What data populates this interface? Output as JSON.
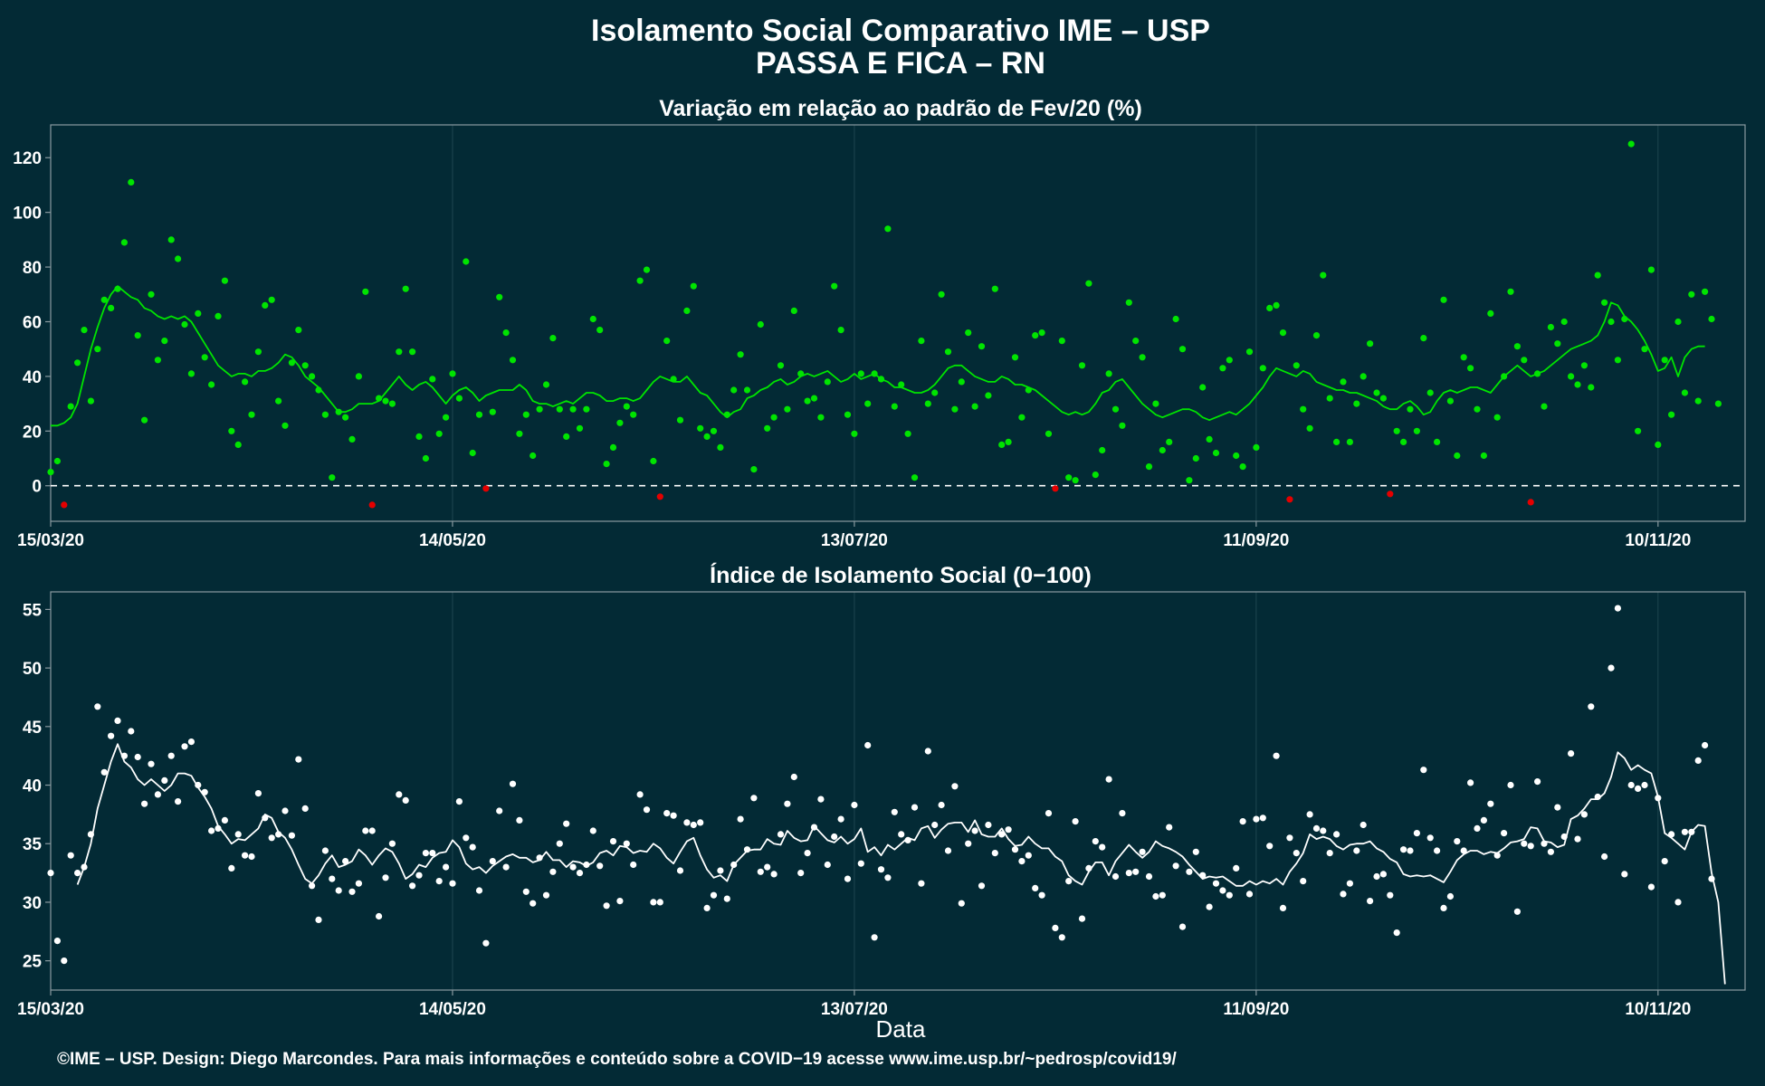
{
  "figure": {
    "title_line1": "Isolamento Social Comparativo IME – USP",
    "title_line2": "PASSA E FICA – RN",
    "xlabel": "Data",
    "footer": "©IME – USP. Design: Diego Marcondes. Para mais informações e conteúdo sobre a COVID−19 acesse www.ime.usp.br/~pedrosp/covid19/",
    "colors": {
      "background": "#032a35",
      "panel_border": "#8a9aa0",
      "grid": "#1e4650",
      "positive": "#00e400",
      "negative": "#e40000",
      "index": "#ffffff"
    }
  },
  "chart_data": [
    {
      "type": "scatter",
      "title": "Variação em relação ao padrão de Fev/20 (%)",
      "x_type": "date",
      "xlim": [
        "2020-03-15",
        "2020-11-23"
      ],
      "ylim": [
        -13,
        132
      ],
      "y_ticks": [
        0,
        20,
        40,
        60,
        80,
        100,
        120
      ],
      "x_ticks": [
        {
          "date": "2020-03-15",
          "label": "15/03/20"
        },
        {
          "date": "2020-05-14",
          "label": "14/05/20"
        },
        {
          "date": "2020-07-13",
          "label": "13/07/20"
        },
        {
          "date": "2020-09-11",
          "label": "11/09/20"
        },
        {
          "date": "2020-11-10",
          "label": "10/11/20"
        }
      ],
      "reference_line": {
        "y": 0,
        "style": "dashed"
      },
      "color_rule": "green when value > 0, red when value < 0",
      "series": [
        {
          "role": "daily",
          "start_date": "2020-03-15",
          "values": [
            5,
            9,
            -7,
            29,
            45,
            57,
            31,
            50,
            68,
            65,
            72,
            89,
            111,
            55,
            24,
            70,
            46,
            53,
            90,
            83,
            59,
            41,
            63,
            47,
            37,
            62,
            75,
            20,
            15,
            38,
            26,
            49,
            66,
            68,
            31,
            22,
            45,
            57,
            44,
            40,
            35,
            26,
            3,
            27,
            25,
            17,
            40,
            71,
            -7,
            32,
            31,
            30,
            49,
            72,
            49,
            18,
            10,
            39,
            19,
            25,
            41,
            32,
            82,
            12,
            26,
            -1,
            27,
            69,
            56,
            46,
            19,
            26,
            11,
            28,
            37,
            54,
            28,
            18,
            28,
            21,
            28,
            61,
            57,
            8,
            14,
            23,
            29,
            26,
            75,
            79,
            9,
            -4,
            53,
            39,
            24,
            64,
            73,
            21,
            18,
            20,
            14,
            26,
            35,
            48,
            35,
            6,
            59,
            21,
            25,
            44,
            28,
            64,
            41,
            31,
            32,
            25,
            38,
            73,
            57,
            26,
            19,
            41,
            30,
            41,
            39,
            94,
            29,
            37,
            19,
            3,
            53,
            30,
            34,
            70,
            49,
            28,
            38,
            56,
            29,
            51,
            33,
            72,
            15,
            16,
            47,
            25,
            35,
            55,
            56,
            19,
            -1,
            53,
            3,
            2,
            44,
            74,
            4,
            13,
            41,
            28,
            22,
            67,
            53,
            47,
            7,
            30,
            13,
            16,
            61,
            50,
            2,
            10,
            36,
            17,
            12,
            43,
            46,
            11,
            7,
            49,
            14,
            43,
            65,
            66,
            56,
            -5,
            44,
            28,
            21,
            55,
            77,
            32,
            16,
            38,
            16,
            30,
            40,
            52,
            34,
            32,
            -3,
            20,
            16,
            28,
            20,
            54,
            34,
            16,
            68,
            31,
            11,
            47,
            43,
            28,
            11,
            63,
            25,
            40,
            71,
            51,
            46,
            -6,
            41,
            29,
            58,
            52,
            60,
            40,
            37,
            44,
            36,
            77,
            67,
            60,
            46,
            61,
            125,
            20,
            50,
            79,
            15,
            46,
            26,
            60,
            34,
            70,
            31,
            71,
            61,
            30
          ]
        },
        {
          "role": "moving_average",
          "start_date": "2020-03-15",
          "values": [
            22,
            22,
            23,
            25,
            30,
            40,
            50,
            58,
            65,
            70,
            73,
            71,
            69,
            68,
            65,
            64,
            62,
            61,
            62,
            61,
            62,
            60,
            56,
            52,
            48,
            44,
            42,
            40,
            41,
            41,
            40,
            42,
            42,
            43,
            45,
            48,
            47,
            44,
            40,
            38,
            36,
            33,
            30,
            27,
            27,
            28,
            30,
            30,
            30,
            31,
            34,
            37,
            40,
            37,
            35,
            37,
            38,
            36,
            33,
            30,
            33,
            35,
            36,
            34,
            31,
            33,
            34,
            35,
            35,
            35,
            37,
            35,
            31,
            30,
            30,
            29,
            30,
            31,
            30,
            32,
            34,
            34,
            33,
            31,
            31,
            32,
            32,
            31,
            32,
            35,
            38,
            40,
            39,
            38,
            38,
            40,
            37,
            34,
            33,
            30,
            27,
            25,
            27,
            28,
            32,
            33,
            35,
            36,
            38,
            39,
            37,
            38,
            40,
            41,
            40,
            41,
            42,
            40,
            38,
            39,
            41,
            39,
            40,
            41,
            39,
            38,
            36,
            36,
            35,
            34,
            34,
            35,
            37,
            40,
            43,
            44,
            44,
            42,
            40,
            39,
            38,
            38,
            40,
            39,
            37,
            37,
            36,
            35,
            33,
            31,
            29,
            27,
            26,
            27,
            26,
            27,
            30,
            34,
            35,
            38,
            39,
            36,
            33,
            30,
            28,
            26,
            25,
            26,
            27,
            28,
            28,
            27,
            25,
            24,
            25,
            26,
            27,
            26,
            28,
            30,
            33,
            36,
            40,
            43,
            42,
            41,
            40,
            42,
            41,
            38,
            37,
            36,
            35,
            35,
            34,
            34,
            33,
            32,
            31,
            29,
            28,
            28,
            30,
            31,
            29,
            26,
            27,
            31,
            34,
            35,
            34,
            35,
            36,
            36,
            35,
            34,
            37,
            40,
            42,
            44,
            42,
            40,
            41,
            42,
            44,
            46,
            48,
            50,
            51,
            52,
            53,
            55,
            60,
            67,
            66,
            62,
            60,
            57,
            53,
            48,
            42,
            43,
            47,
            40,
            47,
            50,
            51,
            51
          ]
        }
      ]
    },
    {
      "type": "scatter",
      "title": "Índice de Isolamento Social (0−100)",
      "x_type": "date",
      "xlim": [
        "2020-03-15",
        "2020-11-23"
      ],
      "ylim": [
        22.5,
        56.5
      ],
      "y_ticks": [
        25,
        30,
        35,
        40,
        45,
        50,
        55
      ],
      "x_ticks": [
        {
          "date": "2020-03-15",
          "label": "15/03/20"
        },
        {
          "date": "2020-05-14",
          "label": "14/05/20"
        },
        {
          "date": "2020-07-13",
          "label": "13/07/20"
        },
        {
          "date": "2020-09-11",
          "label": "11/09/20"
        },
        {
          "date": "2020-11-10",
          "label": "10/11/20"
        }
      ],
      "series": [
        {
          "role": "daily",
          "start_date": "2020-03-15",
          "values": [
            32.5,
            26.7,
            25.0,
            34.0,
            32.5,
            33.0,
            35.8,
            46.7,
            41.1,
            44.2,
            45.5,
            42.5,
            44.6,
            42.4,
            38.4,
            41.8,
            39.2,
            40.4,
            42.5,
            38.6,
            43.3,
            43.7,
            40.0,
            39.4,
            36.1,
            36.3,
            37.0,
            32.9,
            35.8,
            34.0,
            33.9,
            39.3,
            37.2,
            35.5,
            35.8,
            37.8,
            35.7,
            42.2,
            38.0,
            31.4,
            28.5,
            34.4,
            32.0,
            31.0,
            33.5,
            30.9,
            31.6,
            36.1,
            36.1,
            28.8,
            32.1,
            35.0,
            39.2,
            38.7,
            31.4,
            32.3,
            34.2,
            34.2,
            31.8,
            33.0,
            31.6,
            38.6,
            35.5,
            34.7,
            31.0,
            26.5,
            33.5,
            37.8,
            33.0,
            40.1,
            37.0,
            30.9,
            29.9,
            33.8,
            30.6,
            32.6,
            35.0,
            36.7,
            33.0,
            32.5,
            33.2,
            36.1,
            33.1,
            29.7,
            35.2,
            30.1,
            35.0,
            33.2,
            39.2,
            37.9,
            30.0,
            30.0,
            37.6,
            37.4,
            32.7,
            36.8,
            36.6,
            36.8,
            29.5,
            30.6,
            32.7,
            30.3,
            33.2,
            37.1,
            34.5,
            38.9,
            32.6,
            33.0,
            32.4,
            35.8,
            38.4,
            40.7,
            32.5,
            34.2,
            36.4,
            38.8,
            33.2,
            35.6,
            37.1,
            32.0,
            38.3,
            33.3,
            43.4,
            27.0,
            32.8,
            32.1,
            37.7,
            35.8,
            35.3,
            38.1,
            31.6,
            42.9,
            36.6,
            38.3,
            34.4,
            39.9,
            29.9,
            35.0,
            36.1,
            31.4,
            36.6,
            34.2,
            35.8,
            36.2,
            34.5,
            33.5,
            34.0,
            31.2,
            30.6,
            37.6,
            27.8,
            27.0,
            31.8,
            36.9,
            28.6,
            32.9,
            35.2,
            34.7,
            40.5,
            32.2,
            37.6,
            32.5,
            32.6,
            34.3,
            32.2,
            30.5,
            30.6,
            36.4,
            33.1,
            27.9,
            32.6,
            34.3,
            32.3,
            29.6,
            31.6,
            31.0,
            30.6,
            32.9,
            36.9,
            30.7,
            37.1,
            37.2,
            34.8,
            42.5,
            29.5,
            35.5,
            34.2,
            31.8,
            37.5,
            36.3,
            36.1,
            34.2,
            35.8,
            30.7,
            31.6,
            34.4,
            36.6,
            30.1,
            32.2,
            32.4,
            30.6,
            27.4,
            34.5,
            34.4,
            35.9,
            41.3,
            35.5,
            34.4,
            29.5,
            30.5,
            35.2,
            34.4,
            40.2,
            36.3,
            37.0,
            38.4,
            34.0,
            35.9,
            40.0,
            29.2,
            35.0,
            34.8,
            40.3,
            35.0,
            34.3,
            38.1,
            35.6,
            42.7,
            35.4,
            37.5,
            46.7,
            39.0,
            33.9,
            50.0,
            55.1,
            32.4,
            40.0,
            39.7,
            40.0,
            31.3,
            38.9,
            33.5,
            35.8,
            30.0,
            36.0,
            36.0,
            42.1,
            43.4,
            32.0
          ]
        },
        {
          "role": "moving_average",
          "start_date": "2020-03-19",
          "values": [
            31.5,
            33.0,
            35.0,
            38.0,
            40.0,
            42.0,
            43.5,
            42.0,
            41.5,
            40.5,
            40.0,
            40.5,
            40.0,
            39.5,
            40.0,
            41.0,
            41.0,
            40.8,
            39.8,
            39.0,
            38.0,
            36.5,
            35.8,
            35.0,
            35.4,
            35.3,
            35.8,
            36.3,
            37.5,
            37.2,
            36.0,
            35.5,
            34.5,
            33.2,
            32.0,
            31.6,
            32.3,
            33.3,
            34.0,
            33.0,
            33.2,
            33.5,
            34.5,
            34.0,
            33.2,
            34.0,
            34.6,
            34.3,
            33.3,
            32.0,
            32.4,
            33.2,
            33.0,
            33.8,
            34.2,
            34.3,
            35.3,
            34.7,
            33.3,
            32.8,
            33.0,
            32.5,
            33.1,
            33.5,
            33.9,
            34.1,
            33.8,
            33.8,
            33.4,
            33.6,
            34.3,
            33.6,
            33.6,
            33.0,
            33.5,
            33.4,
            33.1,
            33.4,
            34.2,
            34.4,
            34.0,
            34.8,
            34.7,
            34.2,
            34.4,
            34.3,
            35.0,
            34.6,
            33.8,
            33.3,
            34.3,
            35.2,
            35.5,
            34.0,
            32.8,
            32.1,
            32.3,
            31.8,
            33.2,
            33.8,
            34.4,
            34.5,
            34.5,
            35.4,
            35.0,
            34.9,
            36.1,
            35.5,
            35.2,
            35.3,
            36.5,
            35.9,
            35.3,
            35.1,
            35.6,
            35.0,
            35.4,
            36.3,
            34.3,
            34.7,
            34.0,
            34.9,
            34.5,
            35.0,
            35.5,
            35.3,
            36.3,
            36.5,
            35.5,
            36.2,
            36.7,
            36.8,
            36.8,
            36.0,
            37.0,
            35.8,
            35.6,
            35.6,
            36.3,
            35.4,
            34.8,
            34.9,
            35.6,
            35.0,
            34.6,
            34.6,
            33.9,
            33.5,
            32.3,
            31.8,
            31.5,
            32.6,
            33.4,
            33.4,
            32.3,
            33.5,
            34.2,
            34.9,
            34.3,
            33.8,
            34.3,
            35.2,
            34.8,
            34.6,
            34.3,
            33.9,
            33.2,
            32.6,
            32.0,
            32.2,
            32.1,
            32.2,
            31.8,
            31.4,
            31.4,
            31.8,
            31.5,
            31.8,
            31.6,
            32.0,
            31.5,
            32.6,
            33.3,
            34.2,
            35.8,
            35.4,
            35.6,
            35.4,
            34.8,
            34.5,
            34.9,
            35.0,
            35.0,
            35.2,
            34.6,
            34.3,
            33.7,
            33.4,
            32.4,
            32.2,
            32.3,
            32.2,
            32.3,
            32.0,
            31.7,
            32.6,
            33.6,
            34.1,
            34.4,
            34.4,
            34.1,
            34.3,
            34.2,
            34.6,
            35.1,
            35.2,
            35.4,
            36.4,
            36.3,
            35.2,
            35.1,
            34.7,
            34.9,
            37.1,
            37.4,
            38.0,
            38.8,
            38.8,
            39.3,
            40.7,
            42.8,
            42.3,
            41.3,
            41.7,
            41.3,
            41.0,
            39.0,
            35.9,
            35.5,
            35.0,
            34.5,
            36.0,
            36.6,
            36.5,
            32.5,
            30.0,
            23.0
          ]
        }
      ]
    }
  ]
}
